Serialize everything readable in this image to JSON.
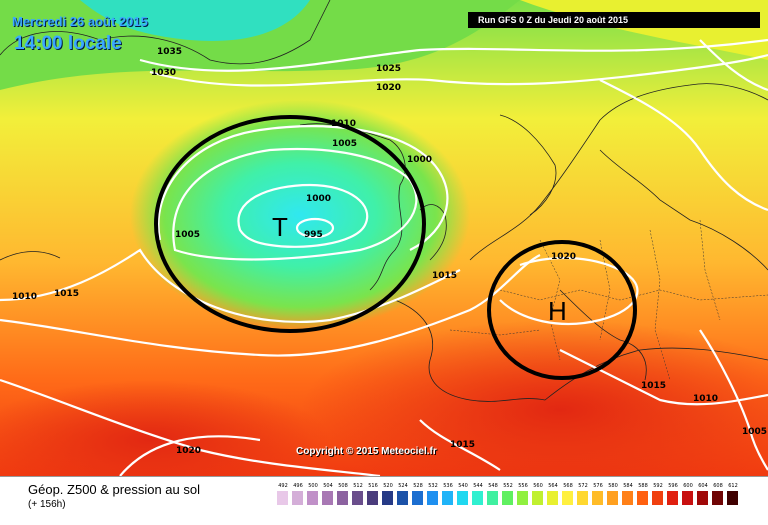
{
  "header": {
    "date": "Mercredi 26 août 2015",
    "local_time": "14:00 locale",
    "run": "Run GFS 0 Z du Jeudi 20 août 2015"
  },
  "copyright": "Copyright © 2015 Meteociel.fr",
  "systems": {
    "low": "T",
    "high": "H"
  },
  "isobars": [
    "1035",
    "1030",
    "1025",
    "1020",
    "1010",
    "1005",
    "1000",
    "1000",
    "995",
    "1005",
    "1010",
    "1015",
    "1015",
    "1020",
    "1015",
    "1010",
    "1005",
    "1020",
    "1015"
  ],
  "legend": {
    "title": "Géop. Z500 & pression au sol",
    "subtitle": "(+ 156h)",
    "scale": [
      {
        "value": "492",
        "color": "#e8c8e8"
      },
      {
        "value": "496",
        "color": "#d4aed8"
      },
      {
        "value": "500",
        "color": "#c090c8"
      },
      {
        "value": "504",
        "color": "#a878b4"
      },
      {
        "value": "508",
        "color": "#8c62a0"
      },
      {
        "value": "512",
        "color": "#6a4e8c"
      },
      {
        "value": "516",
        "color": "#4a3c7c"
      },
      {
        "value": "520",
        "color": "#263a86"
      },
      {
        "value": "524",
        "color": "#1c52a8"
      },
      {
        "value": "528",
        "color": "#1c6ed0"
      },
      {
        "value": "532",
        "color": "#1e90f0"
      },
      {
        "value": "536",
        "color": "#20b4f8"
      },
      {
        "value": "540",
        "color": "#20d8f0"
      },
      {
        "value": "544",
        "color": "#30f0d0"
      },
      {
        "value": "548",
        "color": "#40f0a0"
      },
      {
        "value": "552",
        "color": "#60f060"
      },
      {
        "value": "556",
        "color": "#90f040"
      },
      {
        "value": "560",
        "color": "#c0f030"
      },
      {
        "value": "564",
        "color": "#e8f030"
      },
      {
        "value": "568",
        "color": "#fff040"
      },
      {
        "value": "572",
        "color": "#ffd830"
      },
      {
        "value": "576",
        "color": "#ffbc28"
      },
      {
        "value": "580",
        "color": "#ffa020"
      },
      {
        "value": "584",
        "color": "#ff8018"
      },
      {
        "value": "588",
        "color": "#ff6010"
      },
      {
        "value": "592",
        "color": "#f04010"
      },
      {
        "value": "596",
        "color": "#e02010"
      },
      {
        "value": "600",
        "color": "#c81010"
      },
      {
        "value": "604",
        "color": "#a00808"
      },
      {
        "value": "608",
        "color": "#700404"
      },
      {
        "value": "612",
        "color": "#400000"
      }
    ]
  }
}
